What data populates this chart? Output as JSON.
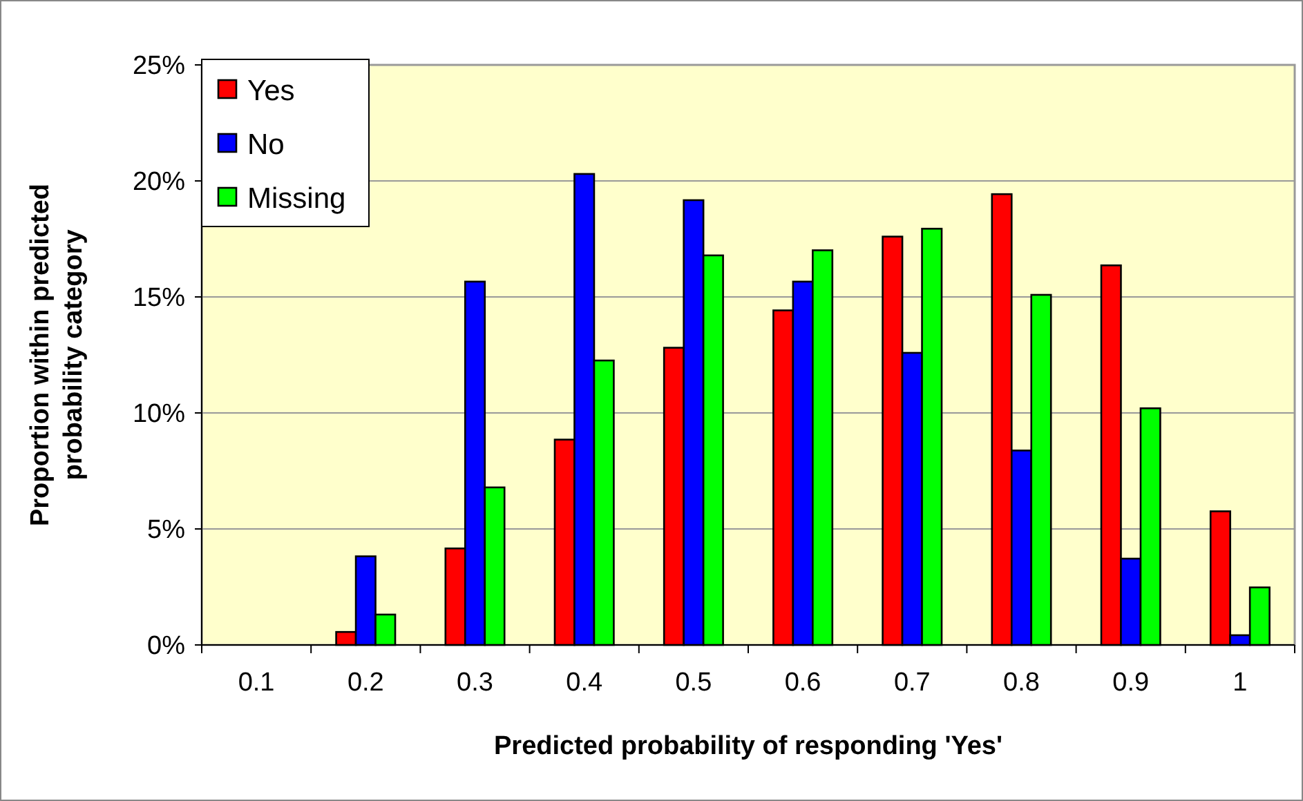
{
  "chart_data": {
    "type": "bar",
    "xlabel": "Predicted probability of responding 'Yes'",
    "ylabel": "Proportion within predicted probability category",
    "categories": [
      "0.1",
      "0.2",
      "0.3",
      "0.4",
      "0.5",
      "0.6",
      "0.7",
      "0.8",
      "0.9",
      "1"
    ],
    "series": [
      {
        "name": "Yes",
        "color": "#ff0000",
        "values": [
          0,
          0.56,
          4.16,
          8.85,
          12.81,
          14.42,
          17.6,
          19.43,
          16.36,
          5.76
        ]
      },
      {
        "name": "No",
        "color": "#0000ff",
        "values": [
          0,
          3.82,
          15.66,
          20.3,
          19.17,
          15.66,
          12.59,
          8.38,
          3.72,
          0.42
        ]
      },
      {
        "name": "Missing",
        "color": "#00ff00",
        "values": [
          0,
          1.31,
          6.79,
          12.26,
          16.79,
          17.01,
          17.94,
          15.09,
          10.2,
          2.48
        ]
      }
    ],
    "ylim": [
      0,
      25
    ],
    "yticks": [
      {
        "value": 0,
        "label": "0%"
      },
      {
        "value": 5,
        "label": "5%"
      },
      {
        "value": 10,
        "label": "10%"
      },
      {
        "value": 15,
        "label": "15%"
      },
      {
        "value": 20,
        "label": "20%"
      },
      {
        "value": 25,
        "label": "25%"
      }
    ],
    "grid": "y",
    "legend": "top left"
  }
}
